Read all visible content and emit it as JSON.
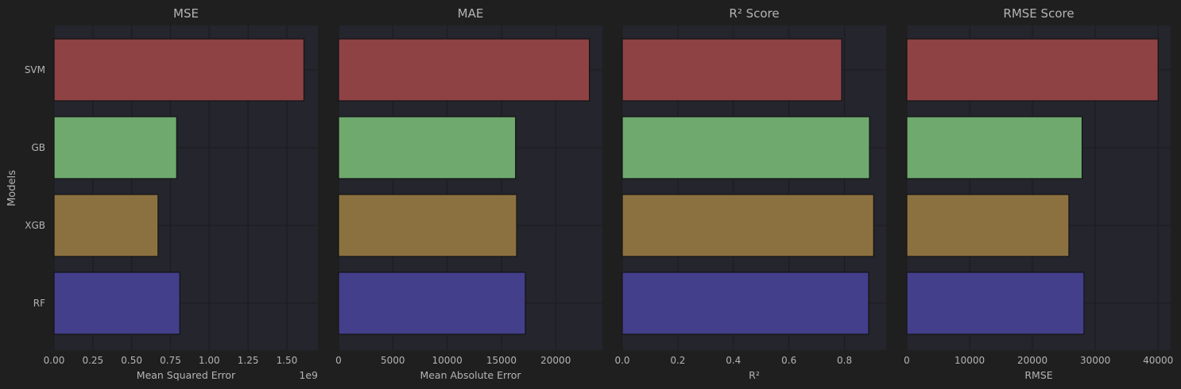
{
  "figure": {
    "background": "#1f1f1f",
    "panel_background": "#24252d",
    "grid_color": "#1c1c1e",
    "text_color": "#b4b4b4",
    "shared_ylabel": "Models"
  },
  "chart_data": [
    {
      "type": "bar",
      "orientation": "horizontal",
      "title": "MSE",
      "xlabel": "Mean Squared Error",
      "offset_text": "1e9",
      "categories": [
        "SVM",
        "GB",
        "XGB",
        "RF"
      ],
      "values": [
        1.61,
        0.79,
        0.67,
        0.81
      ],
      "xlim": [
        0,
        1.7
      ],
      "xticks": [
        0,
        0.25,
        0.5,
        0.75,
        1.0,
        1.25,
        1.5
      ],
      "xtick_labels": [
        "0.00",
        "0.25",
        "0.50",
        "0.75",
        "1.00",
        "1.25",
        "1.50"
      ],
      "colors": [
        "#8e4244",
        "#6fa96e",
        "#8c7140",
        "#433f8b"
      ],
      "grid": true
    },
    {
      "type": "bar",
      "orientation": "horizontal",
      "title": "MAE",
      "xlabel": "Mean Absolute Error",
      "categories": [
        "SVM",
        "GB",
        "XGB",
        "RF"
      ],
      "values": [
        23100,
        16300,
        16400,
        17200
      ],
      "xlim": [
        0,
        24300
      ],
      "xticks": [
        0,
        5000,
        10000,
        15000,
        20000
      ],
      "xtick_labels": [
        "0",
        "5000",
        "10000",
        "15000",
        "20000"
      ],
      "colors": [
        "#8e4244",
        "#6fa96e",
        "#8c7140",
        "#433f8b"
      ],
      "grid": true
    },
    {
      "type": "bar",
      "orientation": "horizontal",
      "title": "R² Score",
      "xlabel": "R²",
      "categories": [
        "SVM",
        "GB",
        "XGB",
        "RF"
      ],
      "values": [
        0.79,
        0.89,
        0.905,
        0.887
      ],
      "xlim": [
        0,
        0.95
      ],
      "xticks": [
        0,
        0.2,
        0.4,
        0.6,
        0.8
      ],
      "xtick_labels": [
        "0.0",
        "0.2",
        "0.4",
        "0.6",
        "0.8"
      ],
      "colors": [
        "#8e4244",
        "#6fa96e",
        "#8c7140",
        "#433f8b"
      ],
      "grid": true
    },
    {
      "type": "bar",
      "orientation": "horizontal",
      "title": "RMSE Score",
      "xlabel": "RMSE",
      "categories": [
        "SVM",
        "GB",
        "XGB",
        "RF"
      ],
      "values": [
        40000,
        27900,
        25800,
        28200
      ],
      "xlim": [
        0,
        42000
      ],
      "xticks": [
        0,
        10000,
        20000,
        30000,
        40000
      ],
      "xtick_labels": [
        "0",
        "10000",
        "20000",
        "30000",
        "40000"
      ],
      "colors": [
        "#8e4244",
        "#6fa96e",
        "#8c7140",
        "#433f8b"
      ],
      "grid": true
    }
  ]
}
